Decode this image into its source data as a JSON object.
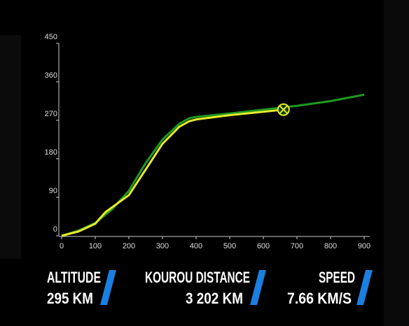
{
  "chart_data": {
    "type": "line",
    "xlim": [
      0,
      900
    ],
    "ylim": [
      0,
      450
    ],
    "xticks": [
      0,
      100,
      200,
      300,
      400,
      500,
      600,
      700,
      800,
      900
    ],
    "yticks": [
      0,
      90,
      180,
      270,
      360,
      450
    ],
    "grid": false,
    "series": [
      {
        "color": "#1f9a1f",
        "x": [
          0,
          50,
          100,
          150,
          200,
          250,
          300,
          350,
          380,
          400,
          500,
          600,
          700,
          800,
          900
        ],
        "values": [
          0,
          12,
          30,
          62,
          105,
          170,
          225,
          262,
          275,
          278,
          286,
          295,
          304,
          315,
          330
        ]
      },
      {
        "color": "#e6ea2a",
        "x": [
          0,
          50,
          100,
          130,
          200,
          250,
          300,
          350,
          380,
          400,
          500,
          600,
          660
        ],
        "values": [
          0,
          10,
          28,
          55,
          95,
          155,
          215,
          255,
          268,
          272,
          282,
          290,
          295
        ]
      }
    ],
    "marker": {
      "x": 660,
      "y": 295,
      "color": "#e6ea2a"
    }
  },
  "telemetry": [
    {
      "label": "ALTITUDE",
      "value": "295 KM"
    },
    {
      "label": "KOUROU DISTANCE",
      "value": "3 202 KM"
    },
    {
      "label": "SPEED",
      "value": "7.66 KM/S"
    }
  ]
}
